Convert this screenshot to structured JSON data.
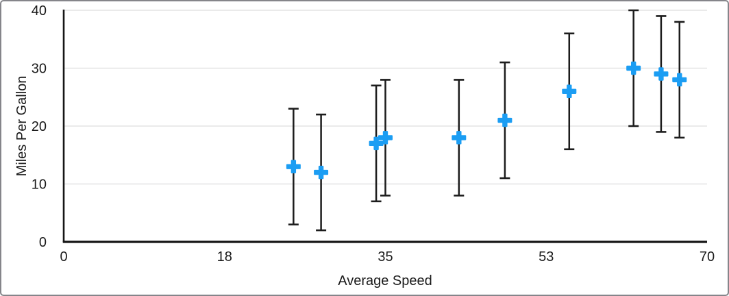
{
  "figure": {
    "kind": "scatter chart with error bars",
    "background_color": "#ffffff",
    "frame_border_color": "#85858a"
  },
  "chart_data": {
    "type": "scatter",
    "title": "",
    "xlabel": "Average Speed",
    "ylabel": "Miles Per Gallon",
    "xlim": [
      0,
      70
    ],
    "ylim": [
      0,
      40
    ],
    "x_ticks": [
      {
        "value": 0,
        "label": "0"
      },
      {
        "value": 17.5,
        "label": "18"
      },
      {
        "value": 35,
        "label": "35"
      },
      {
        "value": 52.5,
        "label": "53"
      },
      {
        "value": 70,
        "label": "70"
      }
    ],
    "y_ticks": [
      {
        "value": 0,
        "label": "0"
      },
      {
        "value": 10,
        "label": "10"
      },
      {
        "value": 20,
        "label": "20"
      },
      {
        "value": 30,
        "label": "30"
      },
      {
        "value": 40,
        "label": "40"
      }
    ],
    "grid": "horizontal gridlines at y ticks (except 0)",
    "legend": "none",
    "marker": {
      "shape": "plus",
      "color": "#1b9df3",
      "width": 21,
      "height": 19.5,
      "arm_thickness": 7.4
    },
    "error_bars": {
      "direction": "vertical",
      "plus": 10,
      "minus": 10,
      "color": "#1c1c1c",
      "cap_width": 15
    },
    "points": [
      {
        "x": 25,
        "y": 13
      },
      {
        "x": 28,
        "y": 12
      },
      {
        "x": 34,
        "y": 17
      },
      {
        "x": 35,
        "y": 18
      },
      {
        "x": 43,
        "y": 18
      },
      {
        "x": 48,
        "y": 21
      },
      {
        "x": 55,
        "y": 26
      },
      {
        "x": 62,
        "y": 30
      },
      {
        "x": 65,
        "y": 29
      },
      {
        "x": 67,
        "y": 28
      }
    ],
    "colors": {
      "gridline": "#e3e3e4",
      "axis_line": "#161616",
      "tick_text": "#1a1a1a"
    }
  }
}
